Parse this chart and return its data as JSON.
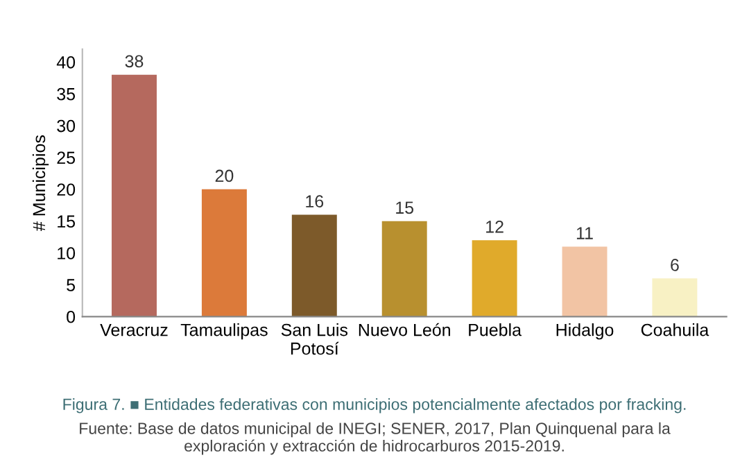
{
  "chart_data": {
    "type": "bar",
    "ylabel": "# Municipios",
    "categories": [
      "Veracruz",
      "Tamaulipas",
      "San Luis\nPotosí",
      "Nuevo León",
      "Puebla",
      "Hidalgo",
      "Coahuila"
    ],
    "values": [
      38,
      20,
      16,
      15,
      12,
      11,
      6
    ],
    "colors": [
      "#b5695e",
      "#dc7a3a",
      "#7d5a2a",
      "#b8902f",
      "#e0aa2b",
      "#f2c4a4",
      "#f8f1c4"
    ],
    "ylim": [
      0,
      42
    ],
    "yticks": [
      0,
      5,
      10,
      15,
      20,
      25,
      30,
      35,
      40
    ],
    "grid": false,
    "data_labels": true,
    "annotations": [
      "Figura 7. ■ Entidades federativas con municipios potencialmente afectados por fracking.",
      "Fuente: Base de datos municipal de INEGI; SENER, 2017, Plan Quinquenal para la\nexploración y extracción de hidrocarburos 2015-2019."
    ]
  }
}
